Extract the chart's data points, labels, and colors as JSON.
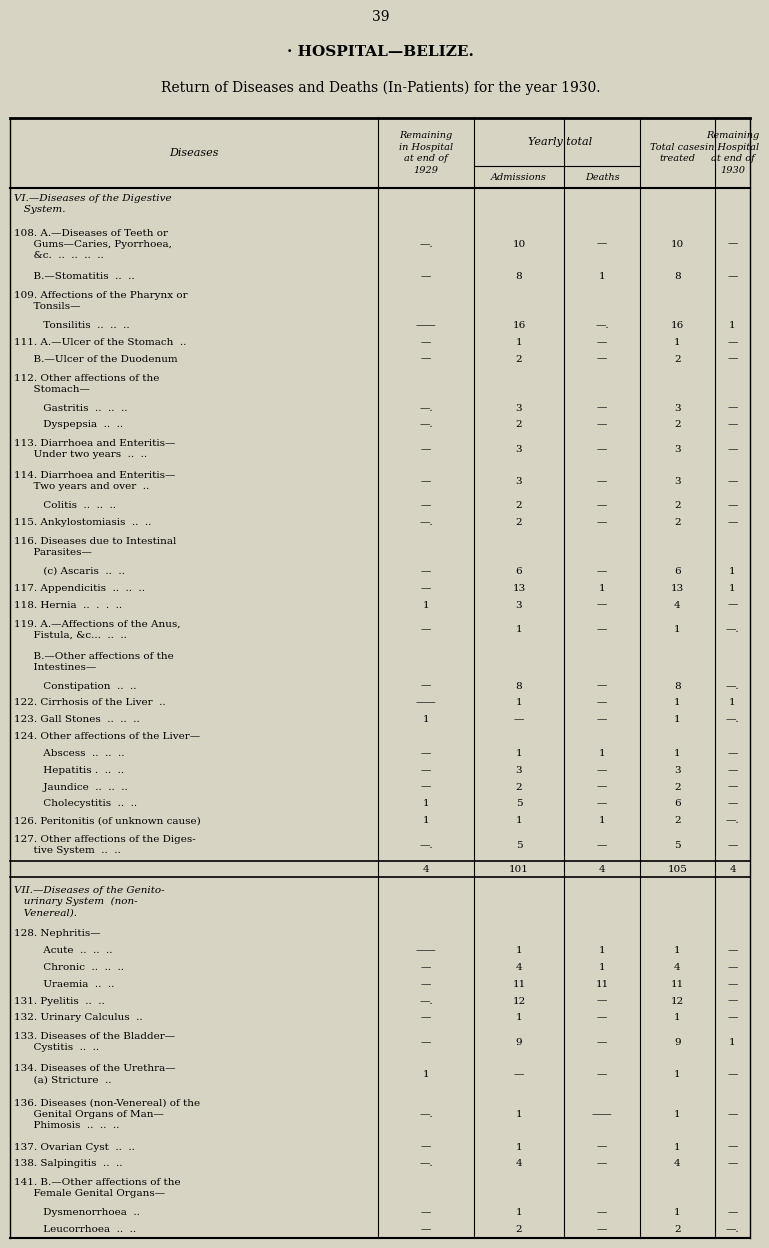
{
  "page_number": "39",
  "title1": "· HOSPITAL—BELIZE.",
  "title2": "Return of Diseases and Deaths (In-Patients) for the year 1930.",
  "bg_color": "#d8d4c4",
  "rows": [
    {
      "text": "VI.—Diseases of the Digestive\n   System.",
      "indent": 0,
      "italic": true,
      "is_header": true,
      "rem1929": "",
      "admissions": "",
      "deaths": "",
      "total": "",
      "rem1930": ""
    },
    {
      "text": "108. A.—Diseases of Teeth or\n      Gums—Caries, Pyorrhoea,\n      &c.  ..  ..  ..  ..",
      "indent": 0,
      "italic": false,
      "is_header": false,
      "rem1929": "—.",
      "admissions": "10",
      "deaths": "—",
      "total": "10",
      "rem1930": "—"
    },
    {
      "text": "      B.—Stomatitis  ..  ..",
      "indent": 0,
      "italic": false,
      "is_header": false,
      "rem1929": "—",
      "admissions": "8",
      "deaths": "1",
      "total": "8",
      "rem1930": "—"
    },
    {
      "text": "109. Affections of the Pharynx or\n      Tonsils—",
      "indent": 0,
      "italic": false,
      "is_header": false,
      "rem1929": "",
      "admissions": "",
      "deaths": "",
      "total": "",
      "rem1930": ""
    },
    {
      "text": "         Tonsilitis  ..  ..  ..",
      "indent": 0,
      "italic": false,
      "is_header": false,
      "rem1929": "——",
      "admissions": "16",
      "deaths": "—.",
      "total": "16",
      "rem1930": "1"
    },
    {
      "text": "111. A.—Ulcer of the Stomach  ..",
      "indent": 0,
      "italic": false,
      "is_header": false,
      "rem1929": "—",
      "admissions": "1",
      "deaths": "—",
      "total": "1",
      "rem1930": "—"
    },
    {
      "text": "      B.—Ulcer of the Duodenum",
      "indent": 0,
      "italic": false,
      "is_header": false,
      "rem1929": "—",
      "admissions": "2",
      "deaths": "—",
      "total": "2",
      "rem1930": "—"
    },
    {
      "text": "112. Other affections of the\n      Stomach—",
      "indent": 0,
      "italic": false,
      "is_header": false,
      "rem1929": "",
      "admissions": "",
      "deaths": "",
      "total": "",
      "rem1930": ""
    },
    {
      "text": "         Gastritis  ..  ..  ..",
      "indent": 0,
      "italic": false,
      "is_header": false,
      "rem1929": "—.",
      "admissions": "3",
      "deaths": "—",
      "total": "3",
      "rem1930": "—"
    },
    {
      "text": "         Dyspepsia  ..  ..",
      "indent": 0,
      "italic": false,
      "is_header": false,
      "rem1929": "—.",
      "admissions": "2",
      "deaths": "—",
      "total": "2",
      "rem1930": "—"
    },
    {
      "text": "113. Diarrhoea and Enteritis—\n      Under two years  ..  ..",
      "indent": 0,
      "italic": false,
      "is_header": false,
      "rem1929": "—",
      "admissions": "3",
      "deaths": "—",
      "total": "3",
      "rem1930": "—"
    },
    {
      "text": "114. Diarrhoea and Enteritis—\n      Two years and over  ..",
      "indent": 0,
      "italic": false,
      "is_header": false,
      "rem1929": "—",
      "admissions": "3",
      "deaths": "—",
      "total": "3",
      "rem1930": "—"
    },
    {
      "text": "         Colitis  ..  ..  ..",
      "indent": 0,
      "italic": false,
      "is_header": false,
      "rem1929": "—",
      "admissions": "2",
      "deaths": "—",
      "total": "2",
      "rem1930": "—"
    },
    {
      "text": "115. Ankylostomiasis  ..  ..",
      "indent": 0,
      "italic": false,
      "is_header": false,
      "rem1929": "—.",
      "admissions": "2",
      "deaths": "—",
      "total": "2",
      "rem1930": "—"
    },
    {
      "text": "116. Diseases due to Intestinal\n      Parasites—",
      "indent": 0,
      "italic": false,
      "is_header": false,
      "rem1929": "",
      "admissions": "",
      "deaths": "",
      "total": "",
      "rem1930": ""
    },
    {
      "text": "         (c) Ascaris  ..  ..",
      "indent": 0,
      "italic": false,
      "is_header": false,
      "rem1929": "—",
      "admissions": "6",
      "deaths": "—",
      "total": "6",
      "rem1930": "1"
    },
    {
      "text": "117. Appendicitis  ..  ..  ..",
      "indent": 0,
      "italic": false,
      "is_header": false,
      "rem1929": "—",
      "admissions": "13",
      "deaths": "1",
      "total": "13",
      "rem1930": "1"
    },
    {
      "text": "118. Hernia  ..  .  .  ..",
      "indent": 0,
      "italic": false,
      "is_header": false,
      "rem1929": "1",
      "admissions": "3",
      "deaths": "—",
      "total": "4",
      "rem1930": "—"
    },
    {
      "text": "119. A.—Affections of the Anus,\n      Fistula, &c...  ..  ..",
      "indent": 0,
      "italic": false,
      "is_header": false,
      "rem1929": "—",
      "admissions": "1",
      "deaths": "—",
      "total": "1",
      "rem1930": "—."
    },
    {
      "text": "      B.—Other affections of the\n      Intestines—",
      "indent": 0,
      "italic": false,
      "is_header": false,
      "rem1929": "",
      "admissions": "",
      "deaths": "",
      "total": "",
      "rem1930": ""
    },
    {
      "text": "         Constipation  ..  ..",
      "indent": 0,
      "italic": false,
      "is_header": false,
      "rem1929": "—",
      "admissions": "8",
      "deaths": "—",
      "total": "8",
      "rem1930": "—."
    },
    {
      "text": "122. Cirrhosis of the Liver  ..",
      "indent": 0,
      "italic": false,
      "is_header": false,
      "rem1929": "——",
      "admissions": "1",
      "deaths": "—",
      "total": "1",
      "rem1930": "1"
    },
    {
      "text": "123. Gall Stones  ..  ..  ..",
      "indent": 0,
      "italic": false,
      "is_header": false,
      "rem1929": "1",
      "admissions": "—",
      "deaths": "—",
      "total": "1",
      "rem1930": "—."
    },
    {
      "text": "124. Other affections of the Liver—",
      "indent": 0,
      "italic": false,
      "is_header": false,
      "rem1929": "",
      "admissions": "",
      "deaths": "",
      "total": "",
      "rem1930": ""
    },
    {
      "text": "         Abscess  ..  ..  ..",
      "indent": 0,
      "italic": false,
      "is_header": false,
      "rem1929": "—",
      "admissions": "1",
      "deaths": "1",
      "total": "1",
      "rem1930": "—"
    },
    {
      "text": "         Hepatitis .  ..  ..",
      "indent": 0,
      "italic": false,
      "is_header": false,
      "rem1929": "—",
      "admissions": "3",
      "deaths": "—",
      "total": "3",
      "rem1930": "—"
    },
    {
      "text": "         Jaundice  ..  ..  ..",
      "indent": 0,
      "italic": false,
      "is_header": false,
      "rem1929": "—",
      "admissions": "2",
      "deaths": "—",
      "total": "2",
      "rem1930": "—"
    },
    {
      "text": "         Cholecystitis  ..  ..",
      "indent": 0,
      "italic": false,
      "is_header": false,
      "rem1929": "1",
      "admissions": "5",
      "deaths": "—",
      "total": "6",
      "rem1930": "—"
    },
    {
      "text": "126. Peritonitis (of unknown cause)",
      "indent": 0,
      "italic": false,
      "is_header": false,
      "rem1929": "1",
      "admissions": "1",
      "deaths": "1",
      "total": "2",
      "rem1930": "—."
    },
    {
      "text": "127. Other affections of the Diges-\n      tive System  ..  ..",
      "indent": 0,
      "italic": false,
      "is_header": false,
      "rem1929": "—.",
      "admissions": "5",
      "deaths": "—",
      "total": "5",
      "rem1930": "—"
    },
    {
      "text": "",
      "indent": 0,
      "italic": false,
      "is_header": false,
      "is_total": true,
      "rem1929": "4",
      "admissions": "101",
      "deaths": "4",
      "total": "105",
      "rem1930": "4"
    },
    {
      "text": "VII.—Diseases of the Genito-\n   urinary System  (non-\n   Venereal).",
      "indent": 0,
      "italic": true,
      "is_header": true,
      "rem1929": "",
      "admissions": "",
      "deaths": "",
      "total": "",
      "rem1930": ""
    },
    {
      "text": "128. Nephritis—",
      "indent": 0,
      "italic": false,
      "is_header": false,
      "rem1929": "",
      "admissions": "",
      "deaths": "",
      "total": "",
      "rem1930": ""
    },
    {
      "text": "         Acute  ..  ..  ..",
      "indent": 0,
      "italic": false,
      "is_header": false,
      "rem1929": "——",
      "admissions": "1",
      "deaths": "1",
      "total": "1",
      "rem1930": "—"
    },
    {
      "text": "         Chronic  ..  ..  ..",
      "indent": 0,
      "italic": false,
      "is_header": false,
      "rem1929": "—",
      "admissions": "4",
      "deaths": "1",
      "total": "4",
      "rem1930": "—"
    },
    {
      "text": "         Uraemia  ..  ..",
      "indent": 0,
      "italic": false,
      "is_header": false,
      "rem1929": "—",
      "admissions": "11",
      "deaths": "11",
      "total": "11",
      "rem1930": "—"
    },
    {
      "text": "131. Pyelitis  ..  ..",
      "indent": 0,
      "italic": false,
      "is_header": false,
      "rem1929": "—.",
      "admissions": "12",
      "deaths": "—",
      "total": "12",
      "rem1930": "—"
    },
    {
      "text": "132. Urinary Calculus  ..",
      "indent": 0,
      "italic": false,
      "is_header": false,
      "rem1929": "—",
      "admissions": "1",
      "deaths": "—",
      "total": "1",
      "rem1930": "—"
    },
    {
      "text": "133. Diseases of the Bladder—\n      Cystitis  ..  ..",
      "indent": 0,
      "italic": false,
      "is_header": false,
      "rem1929": "—",
      "admissions": "9",
      "deaths": "—",
      "total": "9",
      "rem1930": "1"
    },
    {
      "text": "134. Diseases of the Urethra—\n      (a) Stricture  ..",
      "indent": 0,
      "italic": false,
      "is_header": false,
      "rem1929": "1",
      "admissions": "—",
      "deaths": "—",
      "total": "1",
      "rem1930": "—"
    },
    {
      "text": "136. Diseases (non-Venereal) of the\n      Genital Organs of Man—\n      Phimosis  ..  ..  ..",
      "indent": 0,
      "italic": false,
      "is_header": false,
      "rem1929": "—.",
      "admissions": "1",
      "deaths": "——",
      "total": "1",
      "rem1930": "—"
    },
    {
      "text": "137. Ovarian Cyst  ..  ..",
      "indent": 0,
      "italic": false,
      "is_header": false,
      "rem1929": "—",
      "admissions": "1",
      "deaths": "—",
      "total": "1",
      "rem1930": "—"
    },
    {
      "text": "138. Salpingitis  ..  ..",
      "indent": 0,
      "italic": false,
      "is_header": false,
      "rem1929": "—.",
      "admissions": "4",
      "deaths": "—",
      "total": "4",
      "rem1930": "—"
    },
    {
      "text": "141. B.—Other affections of the\n      Female Genital Organs—",
      "indent": 0,
      "italic": false,
      "is_header": false,
      "rem1929": "",
      "admissions": "",
      "deaths": "",
      "total": "",
      "rem1930": ""
    },
    {
      "text": "         Dysmenorrhoea  ..",
      "indent": 0,
      "italic": false,
      "is_header": false,
      "rem1929": "—",
      "admissions": "1",
      "deaths": "—",
      "total": "1",
      "rem1930": "—"
    },
    {
      "text": "         Leucorrhoea  ..  ..",
      "indent": 0,
      "italic": false,
      "is_header": false,
      "rem1929": "—",
      "admissions": "2",
      "deaths": "—",
      "total": "2",
      "rem1930": "—."
    }
  ]
}
